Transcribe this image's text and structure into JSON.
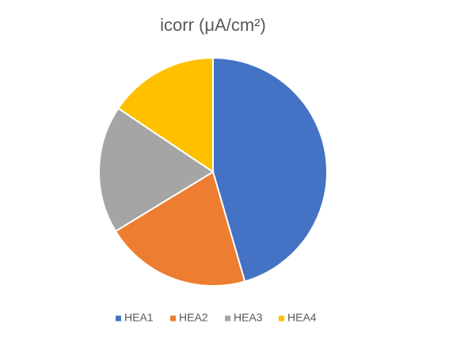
{
  "chart_data": {
    "type": "pie",
    "title": "icorr (μA/cm²)",
    "categories": [
      "HEA1",
      "HEA2",
      "HEA3",
      "HEA4"
    ],
    "values": [
      45.5,
      20.8,
      18.1,
      15.6
    ],
    "colors": [
      "#4472c4",
      "#ed7d31",
      "#a5a5a5",
      "#ffc000"
    ],
    "legend": "bottom"
  }
}
